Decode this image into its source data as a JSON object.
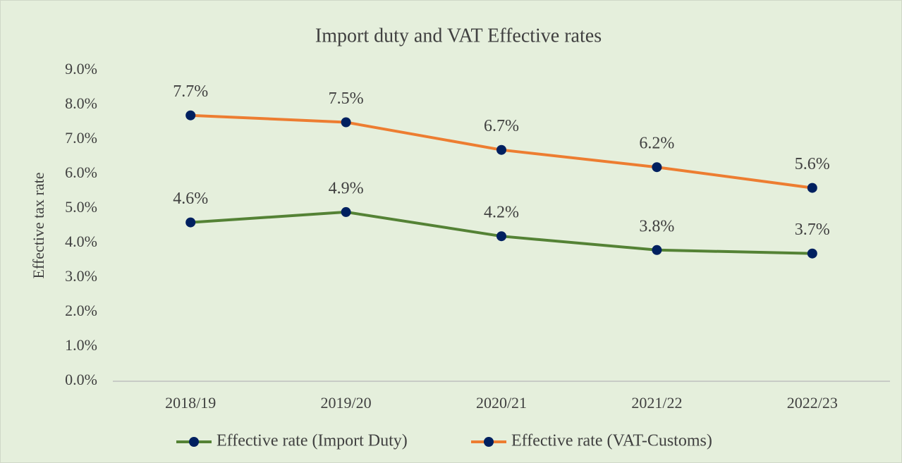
{
  "chart_data": {
    "type": "line",
    "title": "Import duty and VAT Effective rates",
    "y_label": "Effective tax rate",
    "categories": [
      "2018/19",
      "2019/20",
      "2020/21",
      "2021/22",
      "2022/23"
    ],
    "series": [
      {
        "name": "Effective rate (Import Duty)",
        "color": "#548235",
        "marker_color": "#002060",
        "values": [
          4.6,
          4.9,
          4.2,
          3.8,
          3.7
        ],
        "value_labels": [
          "4.6%",
          "4.9%",
          "4.2%",
          "3.8%",
          "3.7%"
        ]
      },
      {
        "name": "Effective rate (VAT-Customs)",
        "color": "#ed7d31",
        "marker_color": "#002060",
        "values": [
          7.7,
          7.5,
          6.7,
          6.2,
          5.6
        ],
        "value_labels": [
          "7.7%",
          "7.5%",
          "6.7%",
          "6.2%",
          "5.6%"
        ]
      }
    ],
    "ylim": [
      0,
      9
    ],
    "yticks": [
      {
        "value": 0,
        "label": "0.0%"
      },
      {
        "value": 1,
        "label": "1.0%"
      },
      {
        "value": 2,
        "label": "2.0%"
      },
      {
        "value": 3,
        "label": "3.0%"
      },
      {
        "value": 4,
        "label": "4.0%"
      },
      {
        "value": 5,
        "label": "5.0%"
      },
      {
        "value": 6,
        "label": "6.0%"
      },
      {
        "value": 7,
        "label": "7.0%"
      },
      {
        "value": 8,
        "label": "8.0%"
      },
      {
        "value": 9,
        "label": "9.0%"
      }
    ],
    "grid": false,
    "legend": "bottom"
  }
}
